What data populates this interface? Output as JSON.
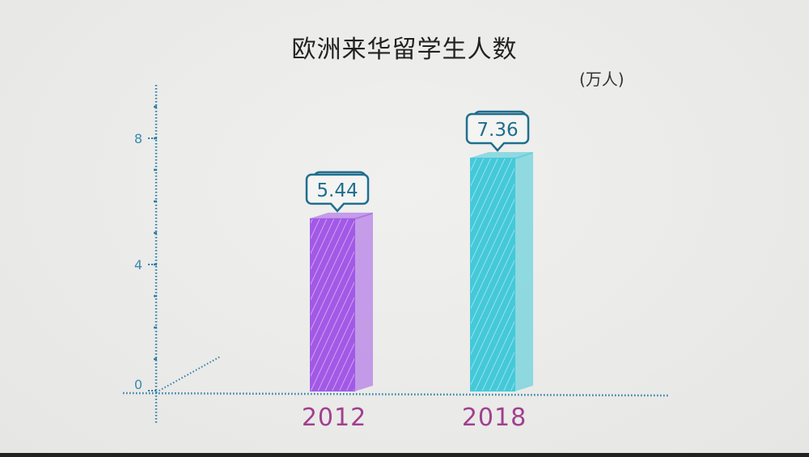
{
  "chart_data": {
    "type": "bar",
    "title": "欧洲来华留学生人数",
    "unit": "(万人)",
    "categories": [
      "2012",
      "2018"
    ],
    "values": [
      5.44,
      7.36
    ],
    "data_labels": [
      "5.44",
      "7.36"
    ],
    "ylim": [
      0,
      9
    ],
    "yticks": [
      0,
      4,
      8
    ],
    "ytick_labels": [
      "0",
      "4",
      "8"
    ],
    "grid": false,
    "legend": "none",
    "colors": {
      "bars": [
        "#a259e6",
        "#44c9d9"
      ],
      "axis": "#2a7fa6",
      "category_labels": "#a0408f",
      "label_box": "#1f6e8e"
    }
  }
}
